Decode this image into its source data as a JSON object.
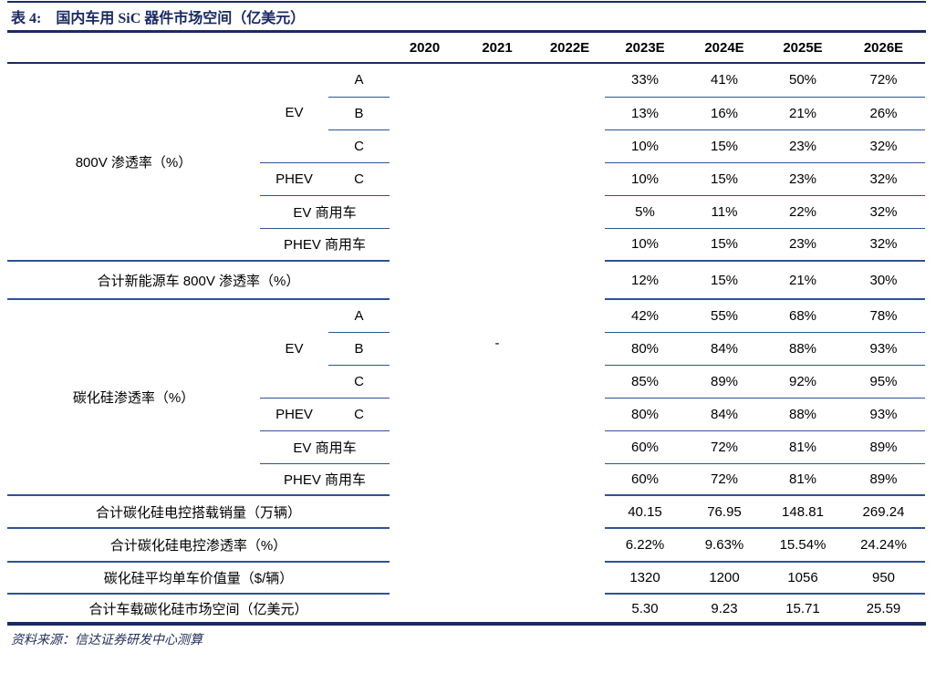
{
  "title": {
    "prefix": "表 4:",
    "text": "国内车用 SiC 器件市场空间（亿美元）"
  },
  "header": {
    "years": [
      "2020",
      "2021",
      "2022E",
      "2023E",
      "2024E",
      "2025E",
      "2026E"
    ]
  },
  "empty_placeholder": "-",
  "sections": [
    {
      "label": "800V 渗透率（%）",
      "rows": [
        {
          "group": "EV",
          "sub": "A",
          "values": [
            "33%",
            "41%",
            "50%",
            "72%"
          ]
        },
        {
          "group": "EV",
          "sub": "B",
          "values": [
            "13%",
            "16%",
            "21%",
            "26%"
          ]
        },
        {
          "group": "EV",
          "sub": "C",
          "values": [
            "10%",
            "15%",
            "23%",
            "32%"
          ]
        },
        {
          "group": "PHEV",
          "sub": "C",
          "values": [
            "10%",
            "15%",
            "23%",
            "32%"
          ]
        },
        {
          "group": "EV 商用车",
          "sub": null,
          "values": [
            "5%",
            "11%",
            "22%",
            "32%"
          ]
        },
        {
          "group": "PHEV 商用车",
          "sub": null,
          "values": [
            "10%",
            "15%",
            "23%",
            "32%"
          ]
        }
      ],
      "total": {
        "label": "合计新能源车 800V 渗透率（%）",
        "values": [
          "12%",
          "15%",
          "21%",
          "30%"
        ]
      }
    },
    {
      "label": "碳化硅渗透率（%）",
      "rows": [
        {
          "group": "EV",
          "sub": "A",
          "values": [
            "42%",
            "55%",
            "68%",
            "78%"
          ]
        },
        {
          "group": "EV",
          "sub": "B",
          "values": [
            "80%",
            "84%",
            "88%",
            "93%"
          ]
        },
        {
          "group": "EV",
          "sub": "C",
          "values": [
            "85%",
            "89%",
            "92%",
            "95%"
          ]
        },
        {
          "group": "PHEV",
          "sub": "C",
          "values": [
            "80%",
            "84%",
            "88%",
            "93%"
          ]
        },
        {
          "group": "EV 商用车",
          "sub": null,
          "values": [
            "60%",
            "72%",
            "81%",
            "89%"
          ]
        },
        {
          "group": "PHEV 商用车",
          "sub": null,
          "values": [
            "60%",
            "72%",
            "81%",
            "89%"
          ]
        }
      ],
      "total": null
    }
  ],
  "summary_rows": [
    {
      "label": "合计碳化硅电控搭载销量（万辆）",
      "values": [
        "40.15",
        "76.95",
        "148.81",
        "269.24"
      ]
    },
    {
      "label": "合计碳化硅电控渗透率（%）",
      "values": [
        "6.22%",
        "9.63%",
        "15.54%",
        "24.24%"
      ]
    },
    {
      "label": "碳化硅平均单车价值量（$/辆）",
      "values": [
        "1320",
        "1200",
        "1056",
        "950"
      ]
    },
    {
      "label": "合计车载碳化硅市场空间（亿美元）",
      "values": [
        "5.30",
        "9.23",
        "15.71",
        "25.59"
      ]
    }
  ],
  "source_note": "资料来源：信达证券研发中心测算",
  "colors": {
    "navy_dark": "#1b2a63",
    "line_blue": "#2e5395",
    "text": "#000000",
    "background": "#ffffff"
  }
}
